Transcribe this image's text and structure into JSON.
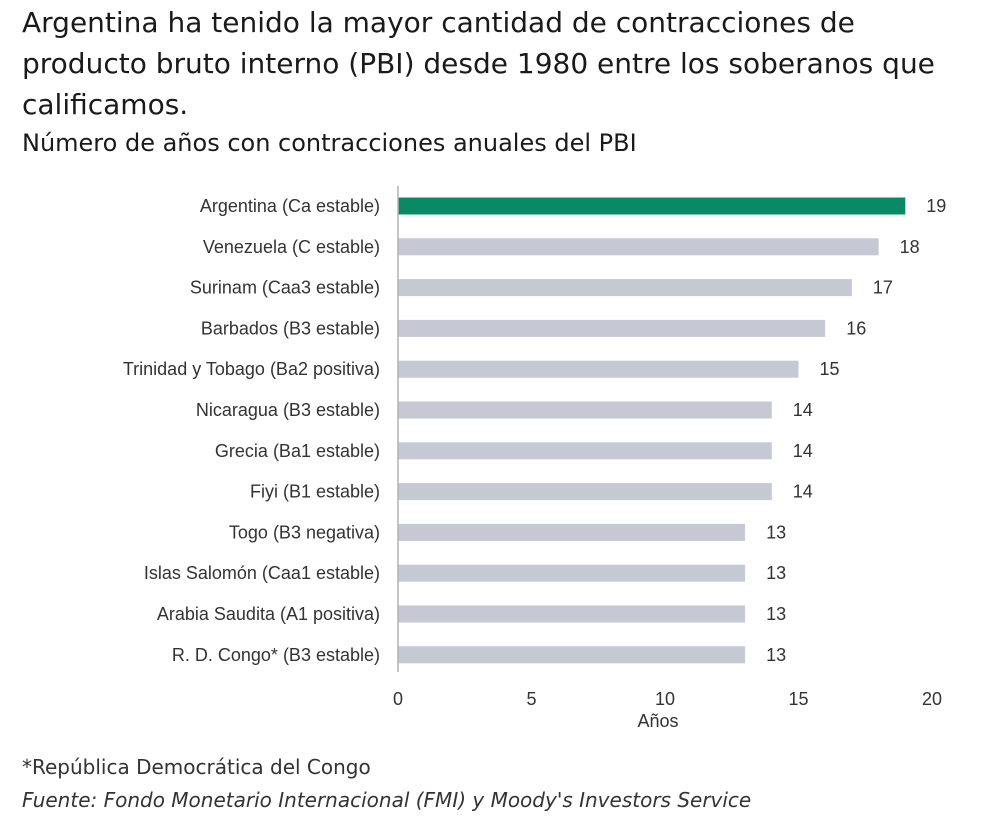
{
  "chart_data": {
    "type": "bar",
    "orientation": "horizontal",
    "title": "Argentina ha tenido la mayor cantidad de contracciones de producto bruto interno (PBI) desde 1980 entre los soberanos que calificamos.",
    "subtitle": "Número de años con contracciones anuales del PBI",
    "categories": [
      "Argentina (Ca estable)",
      "Venezuela (C estable)",
      "Surinam (Caa3 estable)",
      "Barbados (B3 estable)",
      "Trinidad y Tobago (Ba2 positiva)",
      "Nicaragua (B3 estable)",
      "Grecia (Ba1 estable)",
      "Fiyi (B1 estable)",
      "Togo (B3 negativa)",
      "Islas Salomón (Caa1 estable)",
      "Arabia Saudita (A1 positiva)",
      "R. D. Congo* (B3 estable)"
    ],
    "values": [
      19,
      18,
      17,
      16,
      15,
      14,
      14,
      14,
      13,
      13,
      13,
      13
    ],
    "highlight_index": 0,
    "colors": {
      "highlight": "#0a8a64",
      "default": "#c6c9d3",
      "axis": "#b3b3b3"
    },
    "xlabel": "Años",
    "xlim": [
      0,
      20
    ],
    "xticks": [
      0,
      5,
      10,
      15,
      20
    ],
    "grid": false
  },
  "footnote": "*República Democrática del Congo",
  "source": "Fuente: Fondo Monetario Internacional (FMI) y Moody's Investors Service"
}
